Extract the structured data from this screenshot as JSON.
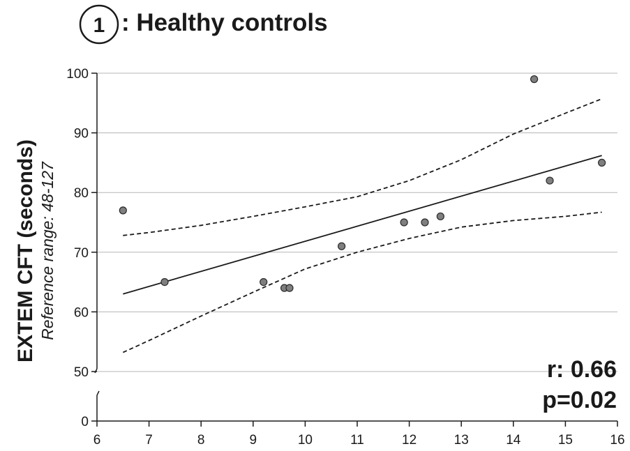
{
  "chart_data": {
    "type": "scatter",
    "badge": "1",
    "title": ": Healthy controls",
    "ylabel": "EXTEM CFT (seconds)",
    "ysublabel": "Reference range: 48-127",
    "xlim": [
      6,
      16
    ],
    "ylim_upper": [
      50,
      100
    ],
    "y_break": true,
    "grid": "horizontal",
    "x_ticks": [
      "6",
      "7",
      "8",
      "9",
      "10",
      "11",
      "12",
      "13",
      "14",
      "15",
      "16"
    ],
    "y_ticks_upper": [
      "50",
      "60",
      "70",
      "80",
      "90",
      "100"
    ],
    "y_tick_lower": "0",
    "points": [
      {
        "x": 6.5,
        "y": 77
      },
      {
        "x": 7.3,
        "y": 65
      },
      {
        "x": 9.2,
        "y": 65
      },
      {
        "x": 9.6,
        "y": 64
      },
      {
        "x": 9.7,
        "y": 64
      },
      {
        "x": 10.7,
        "y": 71
      },
      {
        "x": 11.9,
        "y": 75
      },
      {
        "x": 12.3,
        "y": 75
      },
      {
        "x": 12.6,
        "y": 76
      },
      {
        "x": 14.4,
        "y": 99
      },
      {
        "x": 14.7,
        "y": 82
      },
      {
        "x": 15.7,
        "y": 85
      }
    ],
    "regression": {
      "x": [
        6.5,
        15.7
      ],
      "y": [
        63,
        86.2
      ]
    },
    "ci_upper": {
      "x": [
        6.5,
        7,
        8,
        9,
        10,
        11,
        12,
        13,
        14,
        15,
        15.7
      ],
      "y": [
        72.8,
        73.3,
        74.5,
        76.0,
        77.6,
        79.3,
        82.0,
        85.5,
        89.8,
        93.3,
        95.7
      ]
    },
    "ci_lower": {
      "x": [
        6.5,
        7,
        8,
        9,
        10,
        11,
        12,
        13,
        14,
        15,
        15.7
      ],
      "y": [
        53.2,
        55.2,
        59.3,
        63.3,
        67.2,
        70.0,
        72.3,
        74.2,
        75.3,
        76.0,
        76.7
      ]
    },
    "stats": {
      "r": "r: 0.66",
      "p": "p=0.02"
    }
  }
}
